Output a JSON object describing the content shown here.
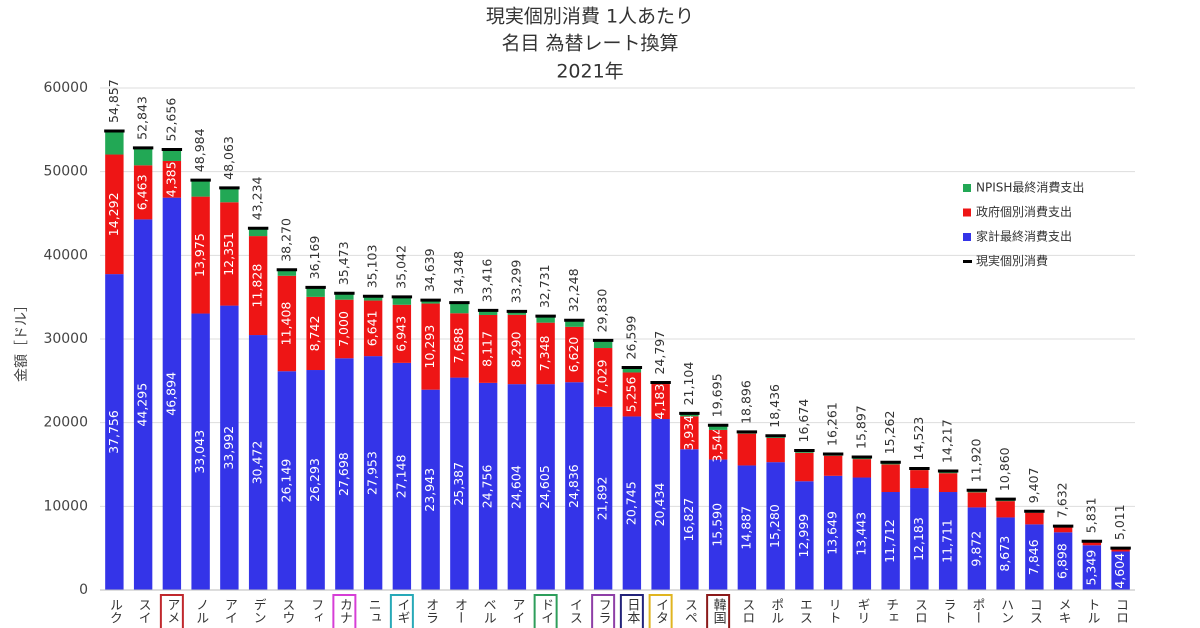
{
  "chart_data": {
    "type": "bar",
    "stacked": true,
    "title": [
      "現実個別消費 1人あたり",
      "名目 為替レート換算",
      "2021年"
    ],
    "y_label": "金額［ドル］",
    "categories": [
      "ルク",
      "スイ",
      "アメ",
      "ノル",
      "アイ",
      "デン",
      "スウ",
      "フィ",
      "カナ",
      "ニュ",
      "イギ",
      "オラ",
      "オー",
      "ベル",
      "アイ",
      "ドイ",
      "イス",
      "フラ",
      "日本",
      "イタ",
      "スペ",
      "韓国",
      "スロ",
      "ポル",
      "エス",
      "リト",
      "ギリ",
      "チェ",
      "スロ",
      "ラト",
      "ポー",
      "ハン",
      "コス",
      "メキ",
      "トル",
      "コロ"
    ],
    "category_box_colors": [
      null,
      null,
      "#c0282d",
      null,
      null,
      null,
      null,
      null,
      "#d63fd6",
      null,
      "#27a9b8",
      null,
      null,
      null,
      null,
      "#2e9e5b",
      null,
      "#8e3fa6",
      "#23237a",
      "#e0b520",
      null,
      "#8b1a1a",
      null,
      null,
      null,
      null,
      null,
      null,
      null,
      null,
      null,
      null,
      null,
      null,
      null,
      null
    ],
    "series": [
      {
        "name": "家計最終消費支出",
        "color": "#3434e8",
        "values": [
          37756,
          44295,
          46894,
          33043,
          33992,
          30472,
          26149,
          26293,
          27698,
          27953,
          27148,
          23943,
          25387,
          24756,
          24604,
          24605,
          24836,
          21892,
          20745,
          20434,
          16827,
          15590,
          14887,
          15280,
          12999,
          13649,
          13443,
          11712,
          12183,
          11711,
          9872,
          8673,
          7846,
          6898,
          5349,
          4604
        ],
        "value_labels": [
          "37,756",
          "44,295",
          "46,894",
          "33,043",
          "33,992",
          "30,472",
          "26,149",
          "26,293",
          "27,698",
          "27,953",
          "27,148",
          "23,943",
          "25,387",
          "24,756",
          "24,604",
          "24,605",
          "24,836",
          "21,892",
          "20,745",
          "20,434",
          "16,827",
          "15,590",
          "14,887",
          "15,280",
          "12,999",
          "13,649",
          "13,443",
          "11,712",
          "12,183",
          "11,711",
          "9,872",
          "8,673",
          "7,846",
          "6,898",
          "5,349",
          "4,604"
        ]
      },
      {
        "name": "政府個別消費支出",
        "color": "#ee1515",
        "values": [
          14292,
          6463,
          4385,
          13975,
          12351,
          11828,
          11408,
          8742,
          7000,
          6641,
          6943,
          10293,
          7688,
          8117,
          8290,
          7348,
          6620,
          7029,
          5256,
          4183,
          3934,
          3544,
          3800,
          2900,
          3400,
          2400,
          2200,
          3300,
          2150,
          2250,
          1800,
          1950,
          1400,
          600,
          400,
          350
        ],
        "value_labels": [
          "14,292",
          "6,463",
          "4,385",
          "13,975",
          "12,351",
          "11,828",
          "11,408",
          "8,742",
          "7,000",
          "6,641",
          "6,943",
          "10,293",
          "7,688",
          "8,117",
          "8,290",
          "7,348",
          "6,620",
          "7,029",
          "5,256",
          "4,183",
          "3,934",
          "3,544",
          null,
          null,
          null,
          null,
          null,
          null,
          null,
          null,
          null,
          null,
          null,
          null,
          null,
          null
        ]
      },
      {
        "name": "NPISH最終消費支出",
        "color": "#22a855",
        "values": [
          2809,
          2085,
          1377,
          1966,
          1720,
          934,
          713,
          1134,
          775,
          509,
          951,
          403,
          1273,
          543,
          405,
          778,
          792,
          909,
          598,
          180,
          343,
          561,
          209,
          256,
          275,
          212,
          254,
          250,
          190,
          256,
          248,
          237,
          161,
          134,
          82,
          57
        ]
      }
    ],
    "total": {
      "name": "現実個別消費",
      "color": "#000000",
      "values": [
        54857,
        52843,
        52656,
        48984,
        48063,
        43234,
        38270,
        36169,
        35473,
        35103,
        35042,
        34639,
        34348,
        33416,
        33299,
        32731,
        32248,
        29830,
        26599,
        24797,
        21104,
        19695,
        18896,
        18436,
        16674,
        16261,
        15897,
        15262,
        14523,
        14217,
        11920,
        10860,
        9407,
        7632,
        5831,
        5011
      ],
      "value_labels": [
        "54,857",
        "52,843",
        "52,656",
        "48,984",
        "48,063",
        "43,234",
        "38,270",
        "36,169",
        "35,473",
        "35,103",
        "35,042",
        "34,639",
        "34,348",
        "33,416",
        "33,299",
        "32,731",
        "32,248",
        "29,830",
        "26,599",
        "24,797",
        "21,104",
        "19,695",
        "18,896",
        "18,436",
        "16,674",
        "16,261",
        "15,897",
        "15,262",
        "14,523",
        "14,217",
        "11,920",
        "10,860",
        "9,407",
        "7,632",
        "5,831",
        "5,011"
      ]
    },
    "ylim": [
      0,
      60000
    ],
    "yticks": [
      0,
      10000,
      20000,
      30000,
      40000,
      50000,
      60000
    ],
    "grid": true,
    "legend": "right"
  }
}
